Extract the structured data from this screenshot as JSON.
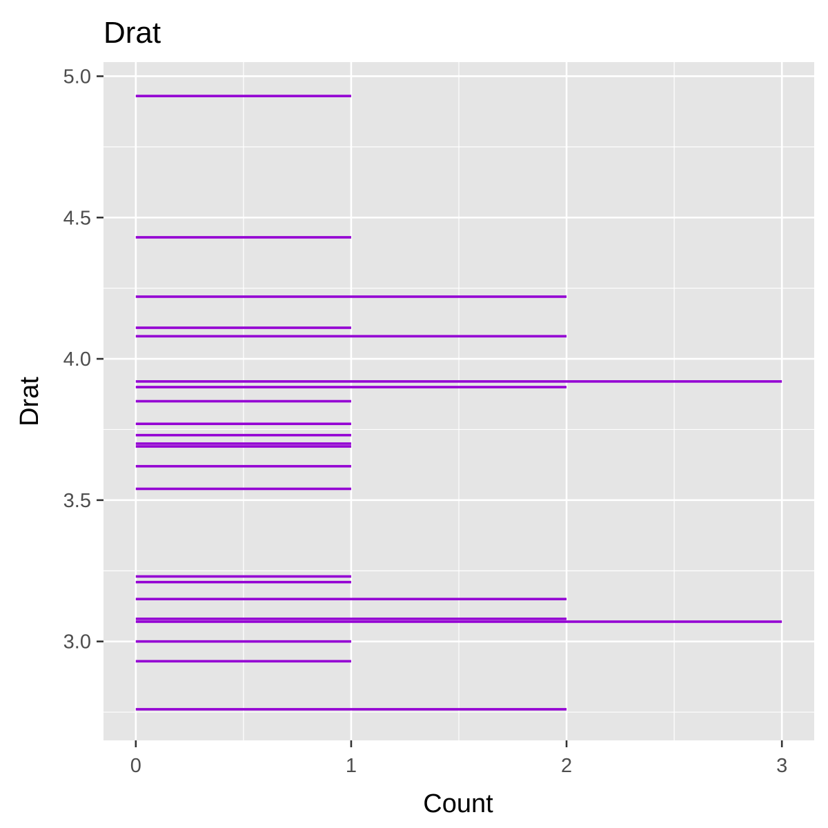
{
  "chart_data": {
    "type": "bar",
    "orientation": "horizontal",
    "title": "Drat",
    "xlabel": "Count",
    "ylabel": "Drat",
    "xlim": [
      -0.15,
      3.15
    ],
    "ylim": [
      2.65,
      5.05
    ],
    "x_ticks": [
      "0",
      "1",
      "2",
      "3"
    ],
    "x_tick_values": [
      0,
      1,
      2,
      3
    ],
    "y_ticks": [
      "3.0",
      "3.5",
      "4.0",
      "4.5",
      "5.0"
    ],
    "y_tick_values": [
      3.0,
      3.5,
      4.0,
      4.5,
      5.0
    ],
    "bar_color": "#9400D3",
    "panel_background": "#E5E5E5",
    "grid": true,
    "legend": "none",
    "bars": [
      {
        "drat": 4.93,
        "count": 1
      },
      {
        "drat": 4.43,
        "count": 1
      },
      {
        "drat": 4.22,
        "count": 2
      },
      {
        "drat": 4.11,
        "count": 1
      },
      {
        "drat": 4.08,
        "count": 2
      },
      {
        "drat": 3.92,
        "count": 3
      },
      {
        "drat": 3.9,
        "count": 2
      },
      {
        "drat": 3.85,
        "count": 1
      },
      {
        "drat": 3.77,
        "count": 1
      },
      {
        "drat": 3.73,
        "count": 1
      },
      {
        "drat": 3.7,
        "count": 1
      },
      {
        "drat": 3.69,
        "count": 1
      },
      {
        "drat": 3.62,
        "count": 1
      },
      {
        "drat": 3.54,
        "count": 1
      },
      {
        "drat": 3.23,
        "count": 1
      },
      {
        "drat": 3.21,
        "count": 1
      },
      {
        "drat": 3.15,
        "count": 2
      },
      {
        "drat": 3.08,
        "count": 2
      },
      {
        "drat": 3.07,
        "count": 3
      },
      {
        "drat": 3.0,
        "count": 1
      },
      {
        "drat": 2.93,
        "count": 1
      },
      {
        "drat": 2.76,
        "count": 2
      }
    ]
  }
}
